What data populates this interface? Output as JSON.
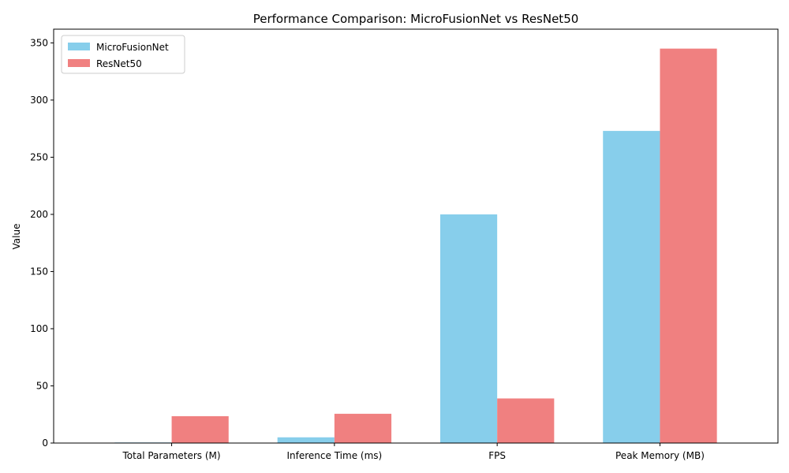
{
  "chart_data": {
    "type": "bar",
    "title": "Performance Comparison: MicroFusionNet vs ResNet50",
    "xlabel": "",
    "ylabel": "Value",
    "categories": [
      "Total Parameters (M)",
      "Inference Time (ms)",
      "FPS",
      "Peak Memory (MB)"
    ],
    "series": [
      {
        "name": "MicroFusionNet",
        "color": "#87ceeb",
        "values": [
          0.5,
          5,
          200,
          273
        ]
      },
      {
        "name": "ResNet50",
        "color": "#f08080",
        "values": [
          23.5,
          25.6,
          39,
          345
        ]
      }
    ],
    "ylim": [
      0,
      362
    ],
    "yticks": [
      0,
      50,
      100,
      150,
      200,
      250,
      300,
      350
    ],
    "grid": false,
    "legend_position": "top-left"
  }
}
